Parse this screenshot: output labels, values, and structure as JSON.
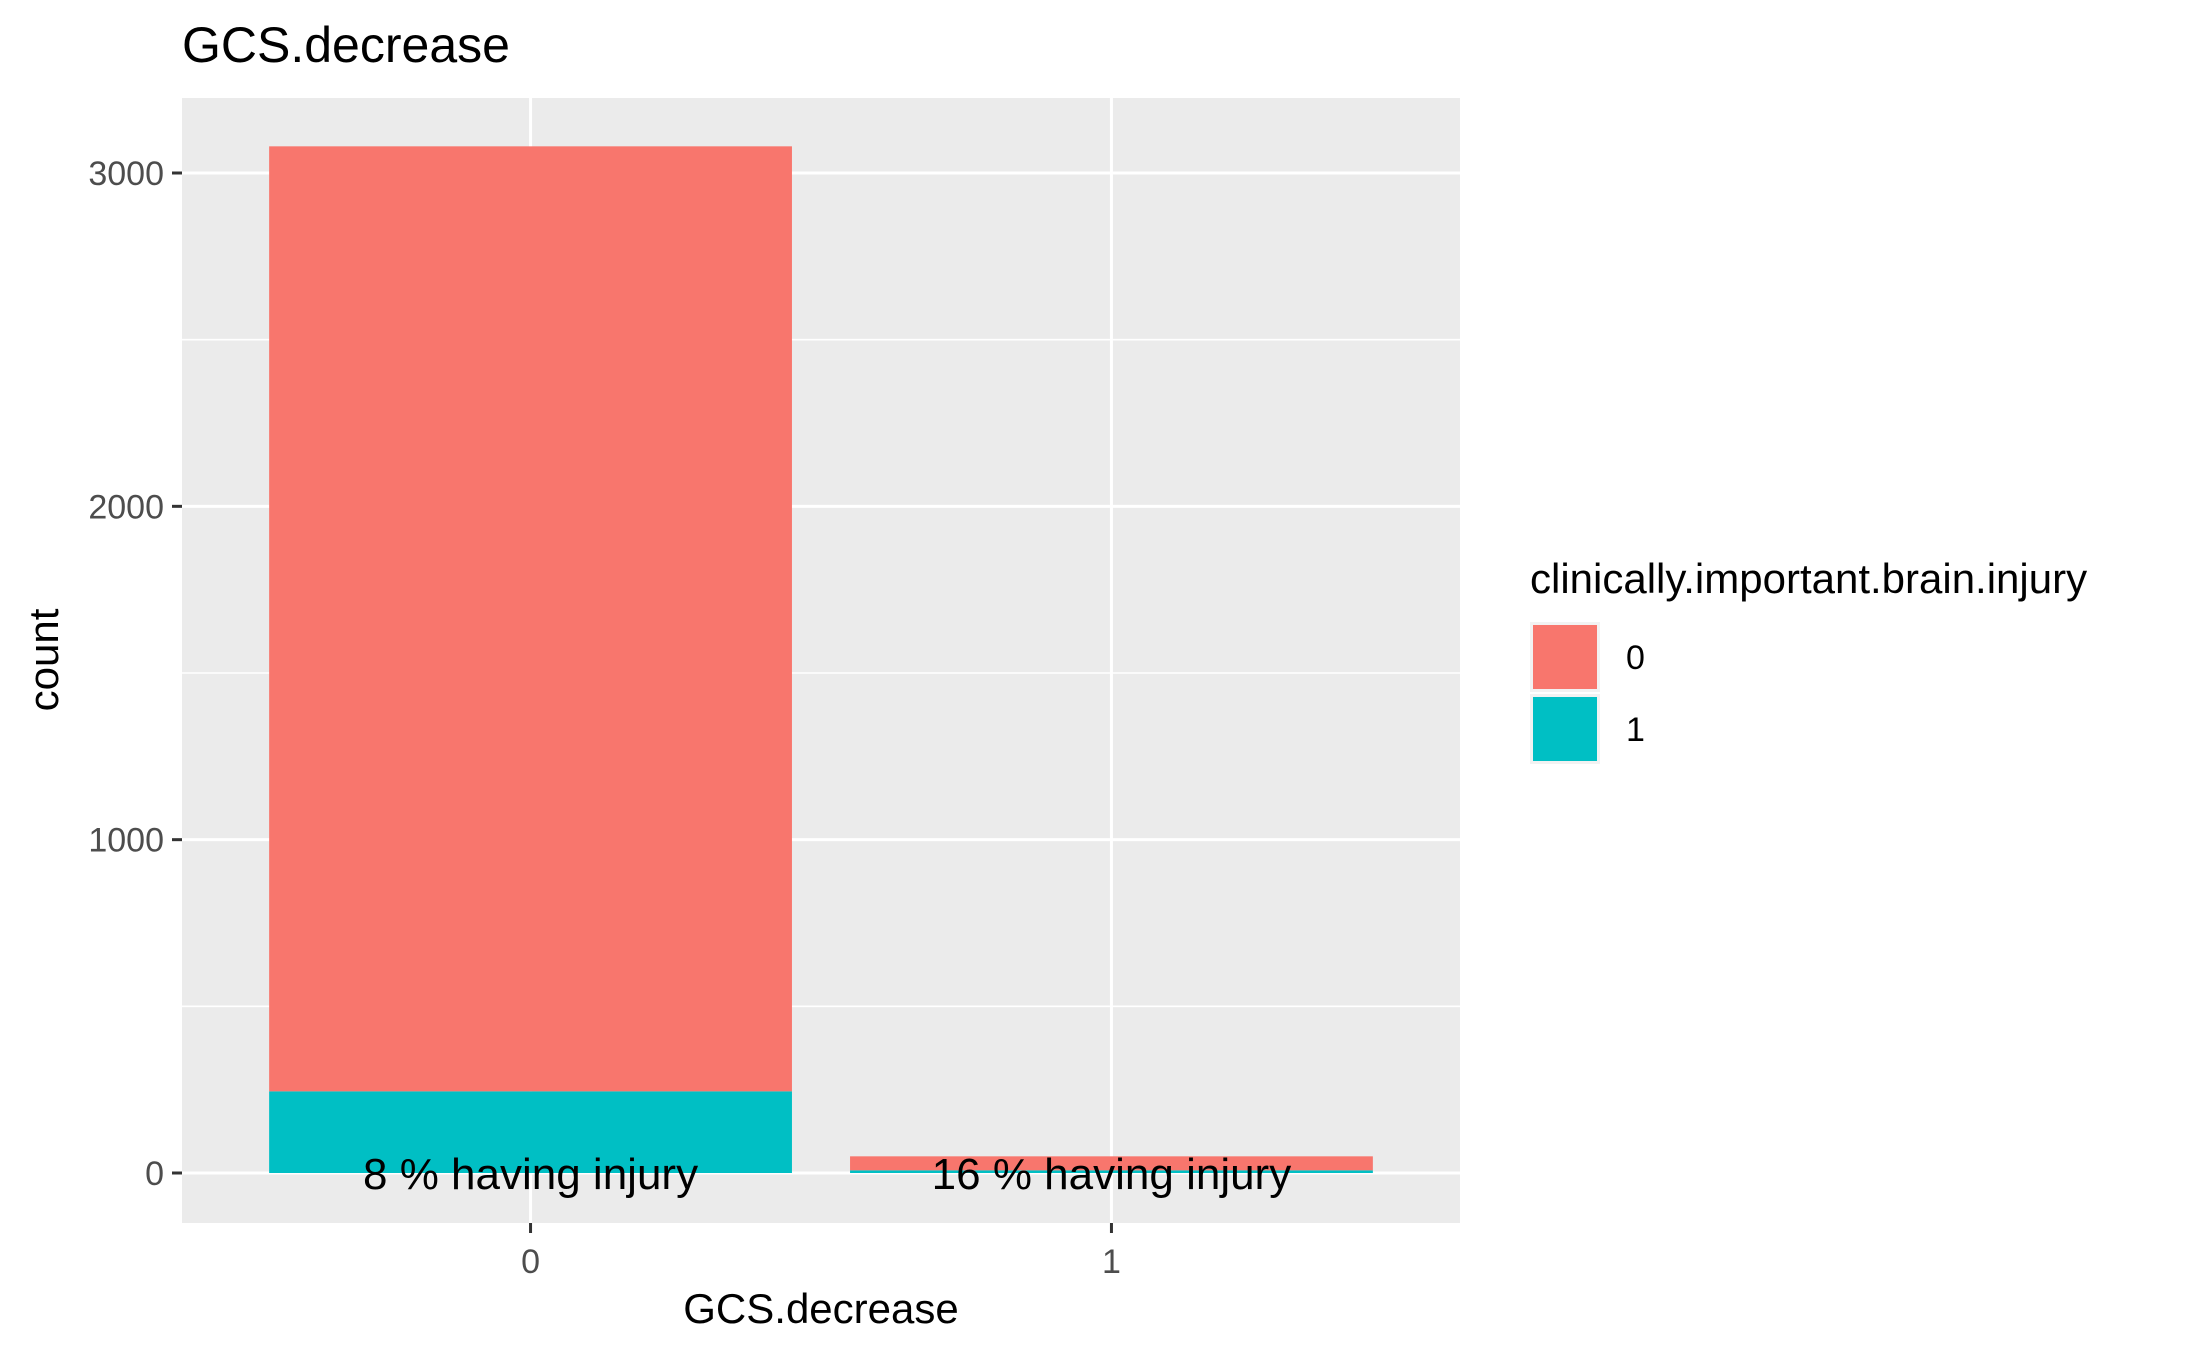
{
  "chart_data": {
    "type": "bar",
    "stacked": true,
    "title": "GCS.decrease",
    "xlabel": "GCS.decrease",
    "ylabel": "count",
    "categories": [
      "0",
      "1"
    ],
    "ylim": [
      -150,
      3225
    ],
    "yticks": [
      0,
      1000,
      2000,
      3000
    ],
    "yticklabels": [
      "0",
      "1000",
      "2000",
      "3000"
    ],
    "grid": true,
    "legend": {
      "title": "clinically.important.brain.injury",
      "position": "right",
      "items": [
        {
          "label": "0",
          "color": "#F8766D"
        },
        {
          "label": "1",
          "color": "#00BFC4"
        }
      ]
    },
    "series": [
      {
        "name": "0",
        "color": "#F8766D",
        "values": [
          2835,
          42
        ]
      },
      {
        "name": "1",
        "color": "#00BFC4",
        "values": [
          245,
          8
        ]
      }
    ],
    "annotations": [
      "8 % having injury",
      "16 % having injury"
    ],
    "colors": {
      "panel": "#EBEBEB",
      "grid": "#FFFFFF",
      "tick": "#333333"
    }
  }
}
